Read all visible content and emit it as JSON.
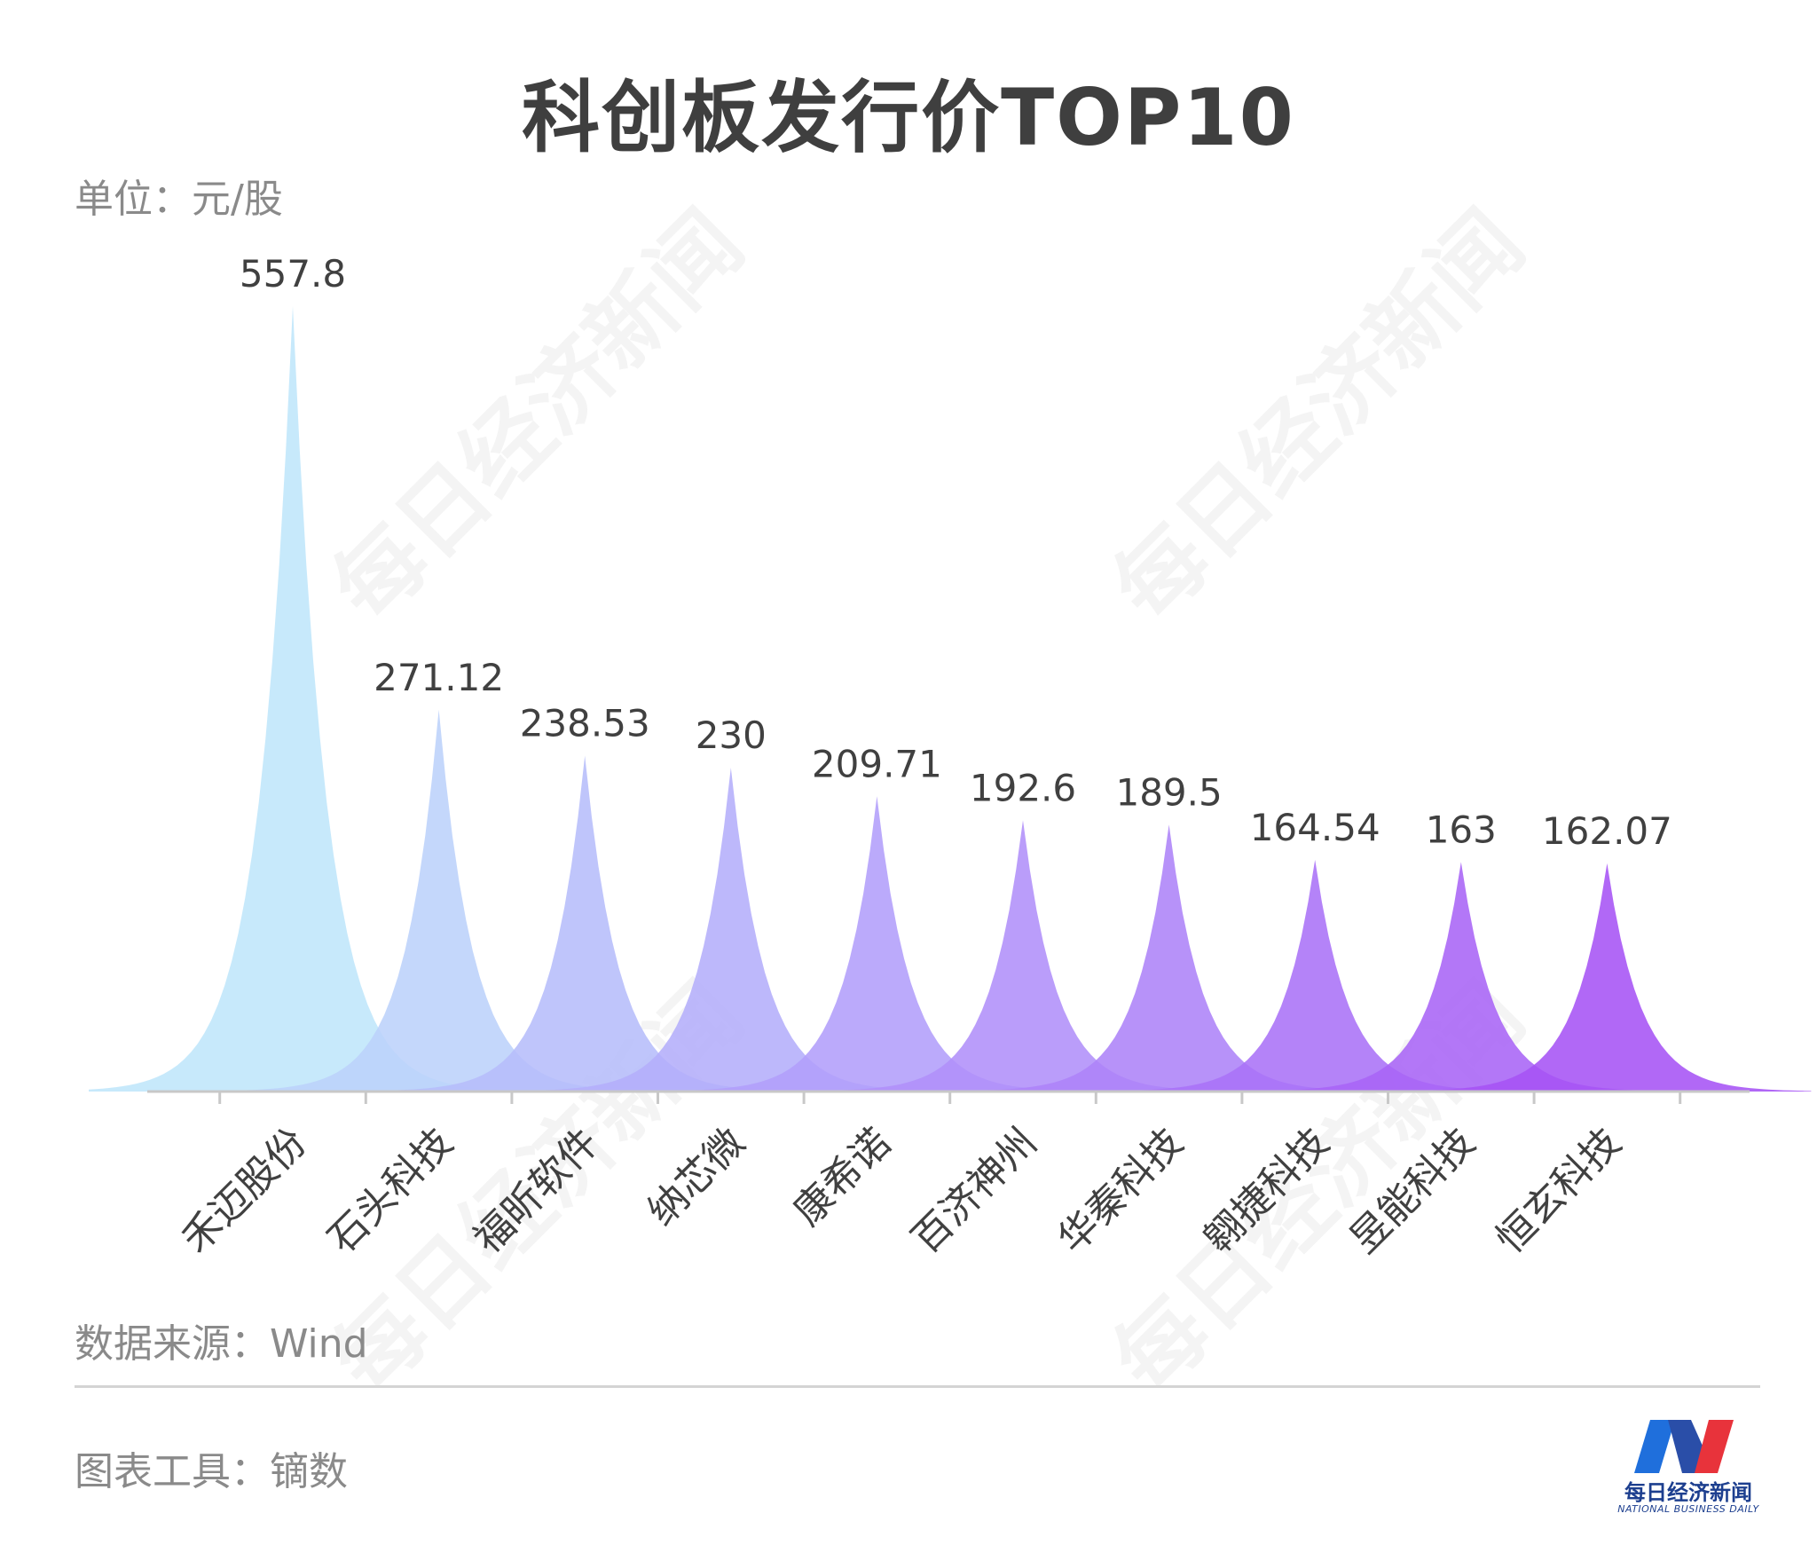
{
  "title": "科创板发行价TOP10",
  "unit_label": "单位：元/股",
  "source_label": "数据来源：Wind",
  "tool_label": "图表工具：镝数",
  "watermark": "每日经济新闻",
  "logo": {
    "cn": "每日经济新闻",
    "en": "NATIONAL BUSINESS DAILY"
  },
  "chart_data": {
    "type": "bar",
    "categories": [
      "禾迈股份",
      "石头科技",
      "福昕软件",
      "纳芯微",
      "康希诺",
      "百济神州",
      "华秦科技",
      "翱捷科技",
      "昱能科技",
      "恒玄科技"
    ],
    "values": [
      557.8,
      271.12,
      238.53,
      230,
      209.71,
      192.6,
      189.5,
      164.54,
      163,
      162.07
    ],
    "value_labels": [
      "557.8",
      "271.12",
      "238.53",
      "230",
      "209.71",
      "192.6",
      "189.5",
      "164.54",
      "163",
      "162.07"
    ],
    "ylim": [
      0,
      557.8
    ],
    "colors": [
      "#bfe6fa",
      "#bcd2fb",
      "#b6bdfb",
      "#b4aefa",
      "#b29efa",
      "#b08ff9",
      "#ad83f8",
      "#aa72f7",
      "#a864f6",
      "#a653f5"
    ],
    "axis_color": "#c8c8c8",
    "label_color": "#404040"
  }
}
